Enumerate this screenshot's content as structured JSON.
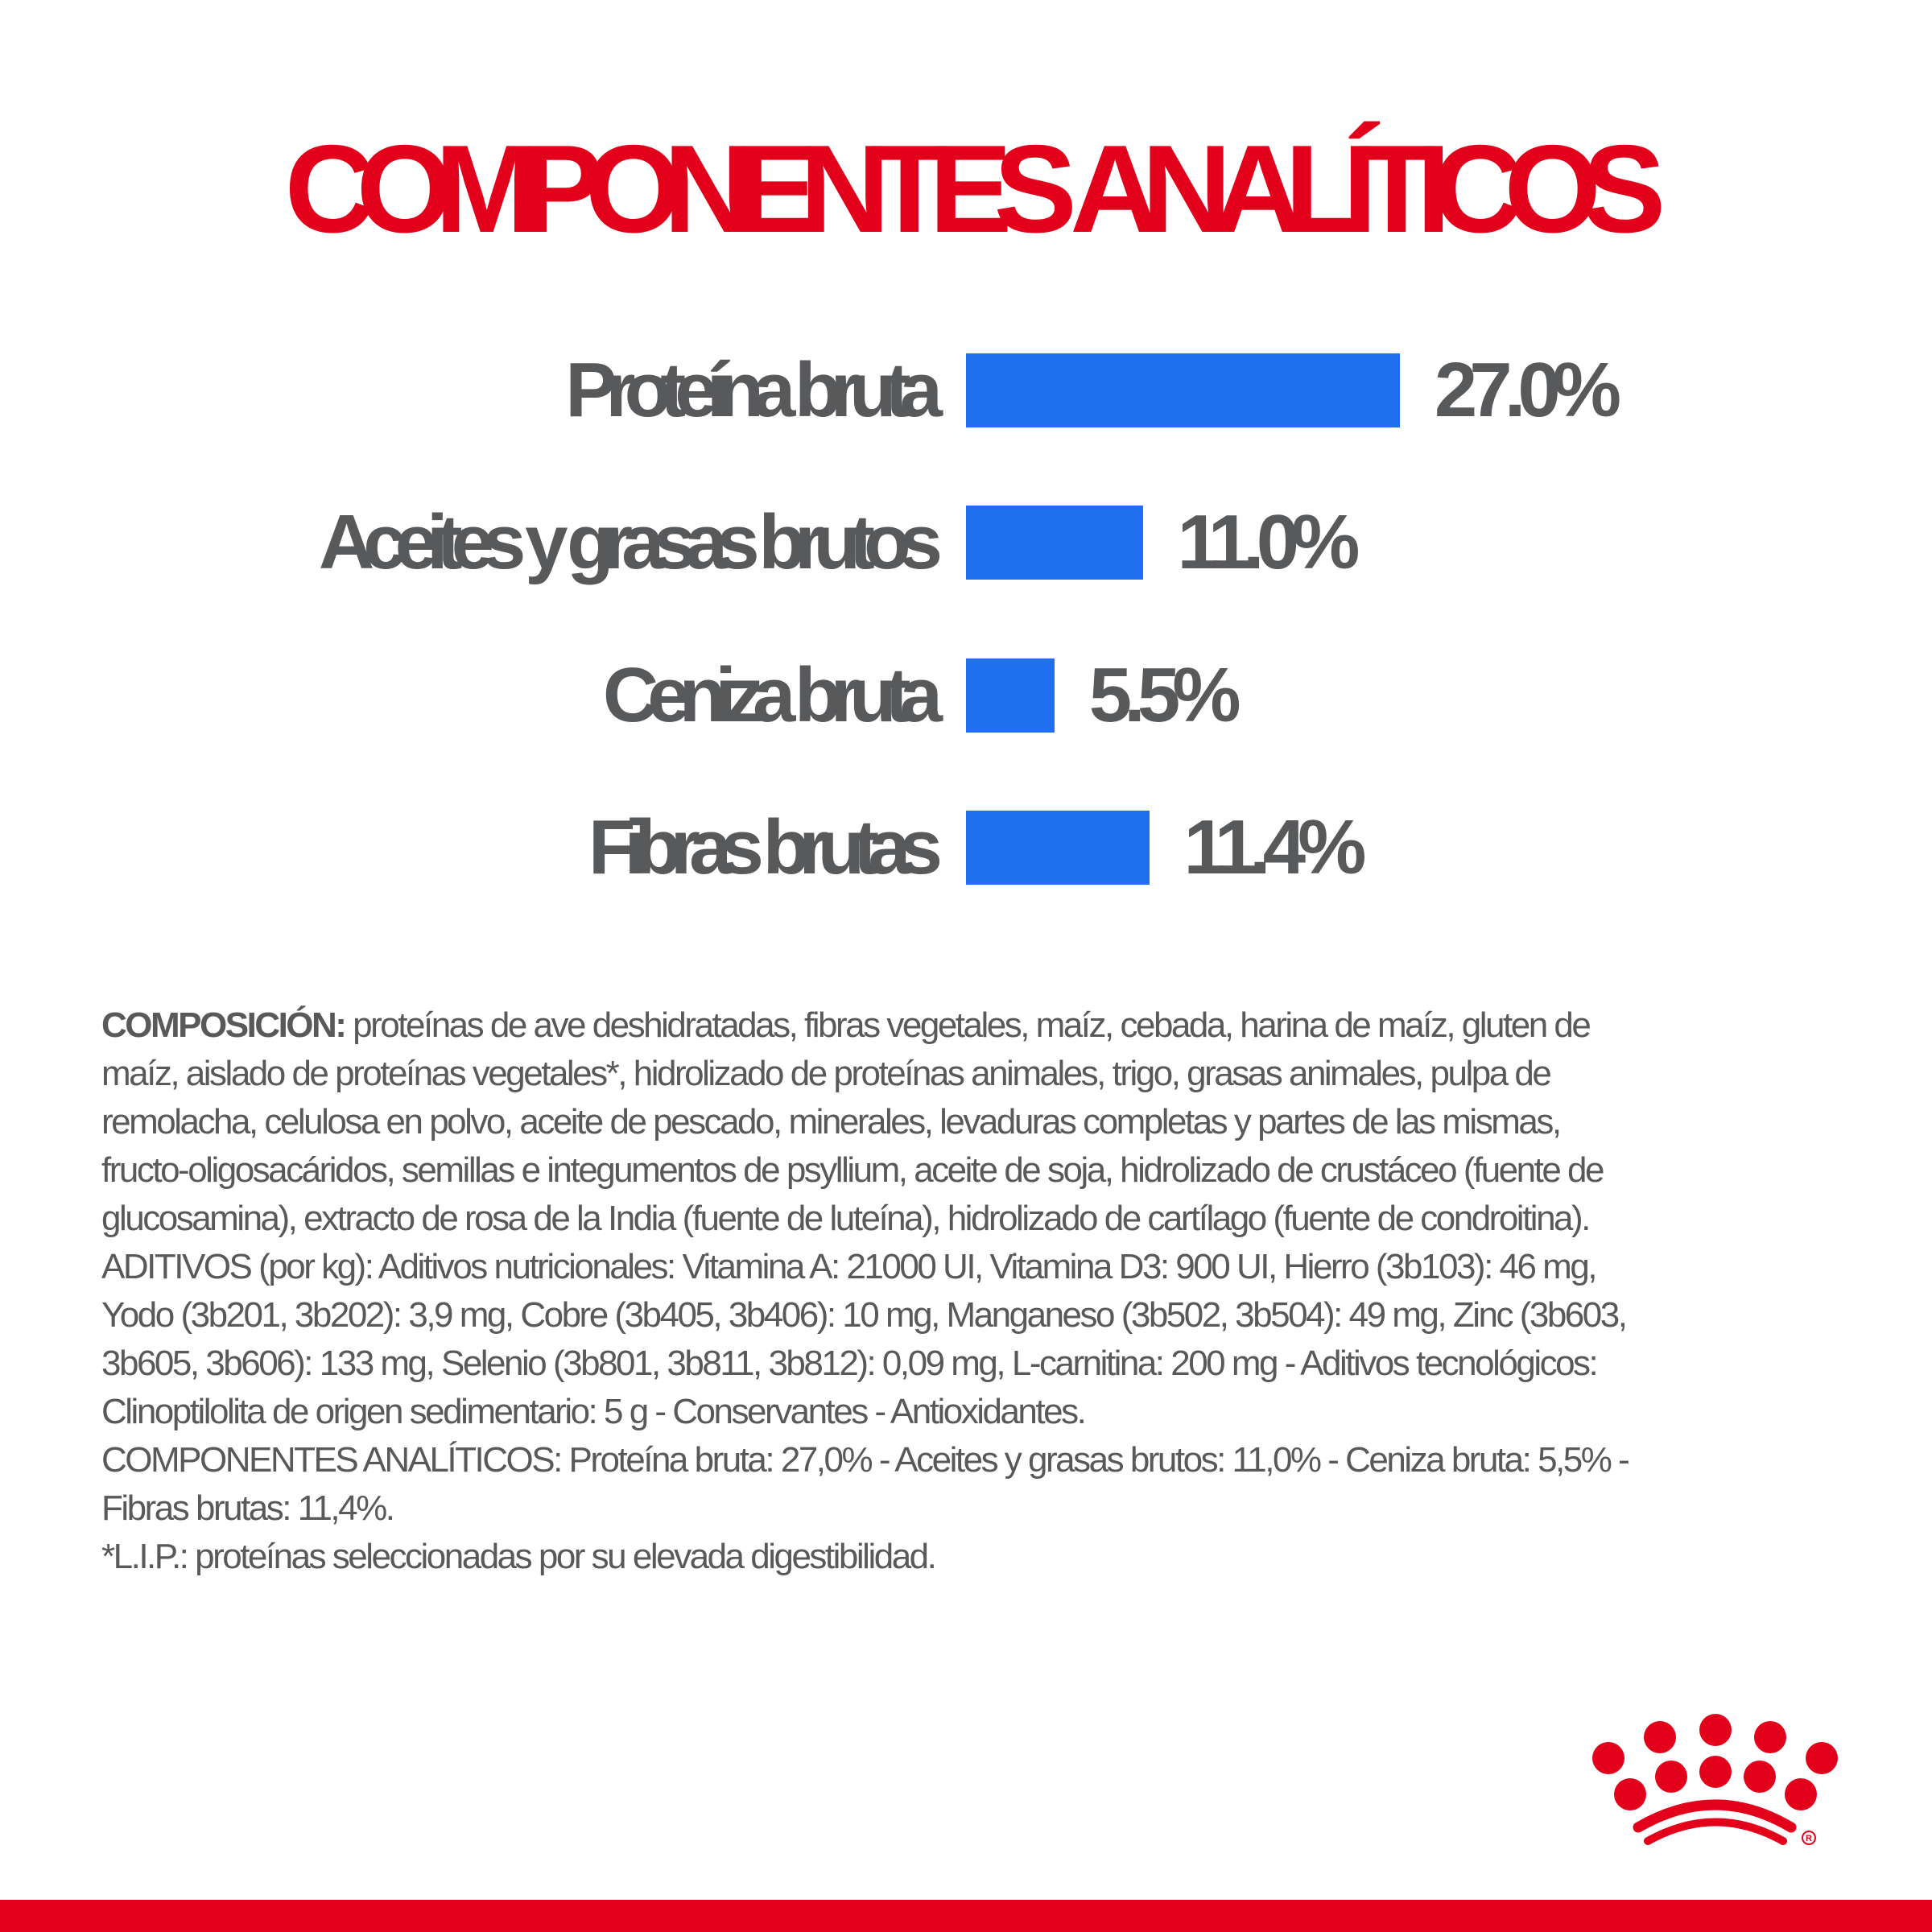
{
  "title": "COMPONENTES ANALÍTICOS",
  "colors": {
    "title": "#e2001a",
    "bar": "#1f6fef",
    "text": "#58595b",
    "brand_red": "#e2001a"
  },
  "chart_data": {
    "type": "bar",
    "orientation": "horizontal",
    "title": "COMPONENTES ANALÍTICOS",
    "categories": [
      "Proteína bruta",
      "Aceites y grasas brutos",
      "Ceniza bruta",
      "Fibras brutas"
    ],
    "values": [
      27.0,
      11.0,
      5.5,
      11.4
    ],
    "data_labels": [
      "27.0%",
      "11.0%",
      "5.5%",
      "11.4%"
    ],
    "unit": "%",
    "grid": false,
    "axes_visible": false
  },
  "composition": {
    "heading": "COMPOSICIÓN:",
    "lines": [
      " proteínas de ave deshidratadas, fibras vegetales, maíz, cebada, harina de maíz, gluten de",
      "maíz, aislado de proteínas vegetales*, hidrolizado de proteínas animales, trigo, grasas animales, pulpa de",
      "remolacha, celulosa en polvo, aceite de pescado, minerales, levaduras completas y partes de las mismas,",
      "fructo-oligosacáridos, semillas e integumentos de psyllium, aceite de soja, hidrolizado de crustáceo (fuente de",
      "glucosamina), extracto de rosa de la India (fuente de luteína), hidrolizado de cartílago (fuente de condroitina).",
      "ADITIVOS (por kg): Aditivos nutricionales: Vitamina A: 21000 UI, Vitamina D3: 900 UI, Hierro (3b103): 46 mg,",
      "Yodo (3b201, 3b202): 3,9 mg, Cobre (3b405, 3b406): 10 mg, Manganeso (3b502, 3b504): 49 mg, Zinc (3b603,",
      "3b605, 3b606): 133 mg, Selenio (3b801, 3b811, 3b812): 0,09 mg, L-carnitina: 200 mg - Aditivos tecnológicos:",
      "Clinoptilolita de origen sedimentario: 5 g - Conservantes - Antioxidantes.",
      "COMPONENTES ANALÍTICOS: Proteína bruta: 27,0% - Aceites y grasas brutos: 11,0% - Ceniza bruta: 5,5% -",
      "Fibras brutas: 11,4%.",
      "*L.I.P.: proteínas seleccionadas por su elevada digestibilidad."
    ]
  },
  "logo": {
    "icon": "royal-canin-crown-logo",
    "mark": "®"
  }
}
